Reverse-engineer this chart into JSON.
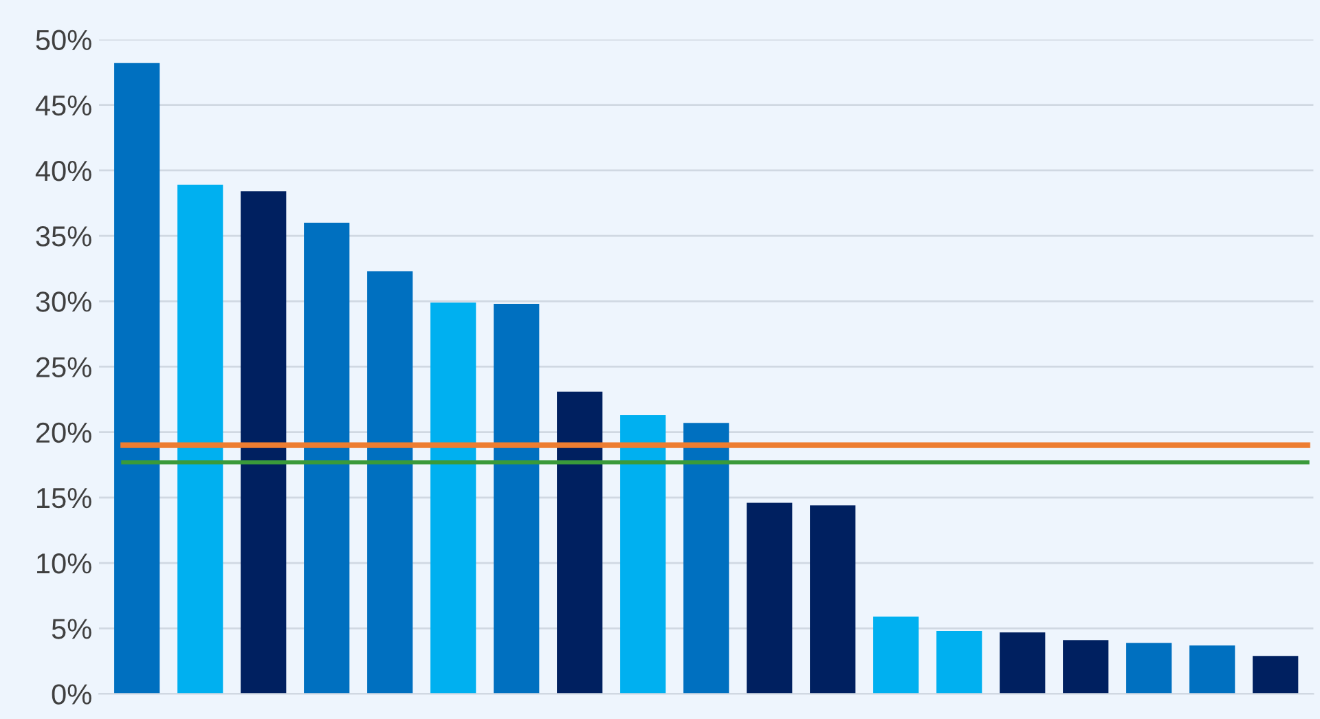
{
  "chart_data": {
    "type": "bar",
    "categories": [
      null,
      null,
      null,
      null,
      null,
      null,
      null,
      null,
      null,
      null,
      null,
      null,
      null,
      null,
      null,
      null,
      null,
      null,
      null
    ],
    "values": [
      48.2,
      38.9,
      38.4,
      36.0,
      32.3,
      29.9,
      29.8,
      23.1,
      21.3,
      20.7,
      14.6,
      14.4,
      5.9,
      4.8,
      4.7,
      4.1,
      3.9,
      3.7,
      2.9
    ],
    "colors": [
      "#0070c0",
      "#00b0f0",
      "#002060",
      "#0070c0",
      "#0070c0",
      "#00b0f0",
      "#0070c0",
      "#002060",
      "#00b0f0",
      "#0070c0",
      "#002060",
      "#002060",
      "#00b0f0",
      "#00b0f0",
      "#002060",
      "#002060",
      "#0070c0",
      "#0070c0",
      "#002060"
    ],
    "ylim": [
      0,
      50
    ],
    "yticks": [
      {
        "value": 0,
        "label": "0%"
      },
      {
        "value": 5,
        "label": "5%"
      },
      {
        "value": 10,
        "label": "10%"
      },
      {
        "value": 15,
        "label": "15%"
      },
      {
        "value": 20,
        "label": "20%"
      },
      {
        "value": 25,
        "label": "25%"
      },
      {
        "value": 30,
        "label": "30%"
      },
      {
        "value": 35,
        "label": "35%"
      },
      {
        "value": 40,
        "label": "40%"
      },
      {
        "value": 45,
        "label": "45%"
      },
      {
        "value": 50,
        "label": "50%"
      }
    ],
    "ref_lines": [
      {
        "axis": "y",
        "value": 19.0,
        "color": "#ed7d31"
      },
      {
        "axis": "y",
        "value": 17.7,
        "color": "#3a9a3a"
      }
    ],
    "grid": "y"
  }
}
